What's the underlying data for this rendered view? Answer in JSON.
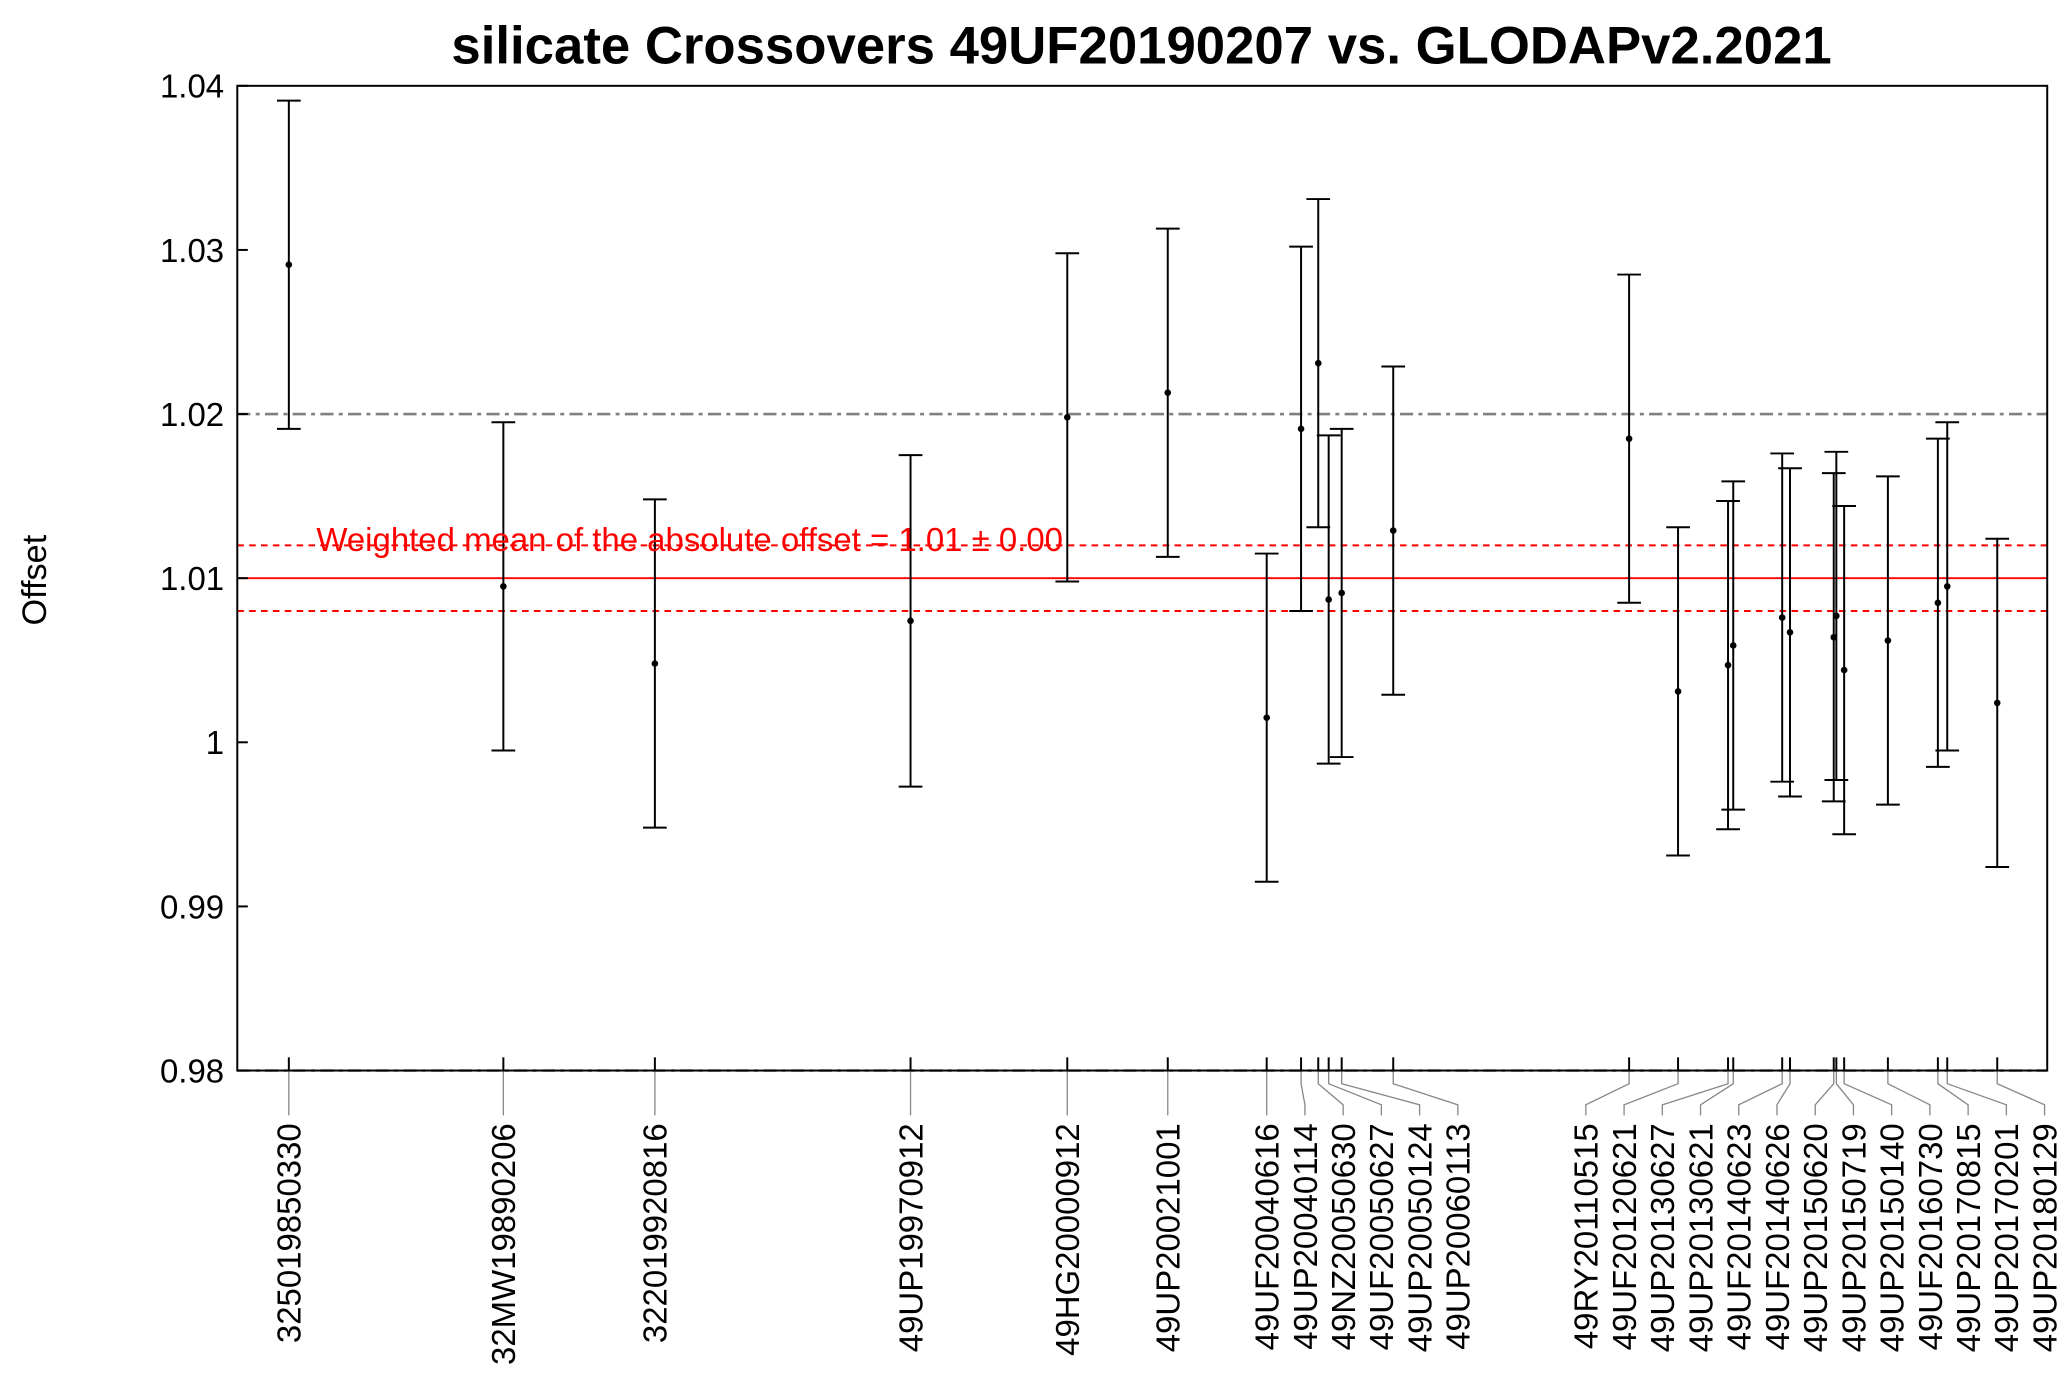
{
  "chart_data": {
    "type": "scatter",
    "title": "silicate Crossovers 49UF20190207 vs. GLODAPv2.2021",
    "xlabel": "",
    "ylabel": "Offset",
    "ylim": [
      0.98,
      1.04
    ],
    "yticks": [
      "0.98",
      "0.99",
      "1",
      "1.01",
      "1.02",
      "1.03",
      "1.04"
    ],
    "xlim": [
      1984.26,
      2019.02
    ],
    "annotation": "Weighted mean of the absolute offset = 1.01 ± 0.00",
    "weighted_mean": 1.01,
    "mean_band": [
      1.008,
      1.012
    ],
    "reference_line": 1.02,
    "colors": {
      "mean": "#ff0000",
      "points": "#000000",
      "reference": "#808080"
    },
    "points": [
      {
        "label": "325019850330",
        "x": 1985.25,
        "y": 1.0291,
        "err": 0.01
      },
      {
        "label": "32MW19890206",
        "x": 1989.37,
        "y": 1.0095,
        "err": 0.01
      },
      {
        "label": "322019920816",
        "x": 1992.28,
        "y": 1.0048,
        "err": 0.01
      },
      {
        "label": "49UP19970912",
        "x": 1997.19,
        "y": 1.0074,
        "err": 0.0101
      },
      {
        "label": "49HG20000912",
        "x": 2000.2,
        "y": 1.0198,
        "err": 0.01
      },
      {
        "label": "49UP20021001",
        "x": 2002.13,
        "y": 1.0213,
        "err": 0.01
      },
      {
        "label": "49UF20040616",
        "x": 2004.03,
        "y": 1.0015,
        "err": 0.01
      },
      {
        "label": "49UP20040114",
        "x": 2004.69,
        "y": 1.0191,
        "err": 0.0111
      },
      {
        "label": "49NZ20050630",
        "x": 2005.02,
        "y": 1.0231,
        "err": 0.01
      },
      {
        "label": "49UF20050627",
        "x": 2005.22,
        "y": 1.0087,
        "err": 0.01
      },
      {
        "label": "49UP20050124",
        "x": 2005.47,
        "y": 1.0091,
        "err": 0.01
      },
      {
        "label": "49UP20060113",
        "x": 2006.46,
        "y": 1.0129,
        "err": 0.01
      },
      {
        "label": "49RY20110515",
        "x": 2010.99,
        "y": 1.0185,
        "err": 0.01
      },
      {
        "label": "49UF20120621",
        "x": 2011.93,
        "y": 1.0031,
        "err": 0.01
      },
      {
        "label": "49UP20130627",
        "x": 2012.89,
        "y": 1.0047,
        "err": 0.01
      },
      {
        "label": "49UP20130621",
        "x": 2012.99,
        "y": 1.0059,
        "err": 0.01
      },
      {
        "label": "49UF20140623",
        "x": 2013.93,
        "y": 1.0076,
        "err": 0.01
      },
      {
        "label": "49UF20140626",
        "x": 2014.08,
        "y": 1.0067,
        "err": 0.01
      },
      {
        "label": "49UP20150620",
        "x": 2014.92,
        "y": 1.0064,
        "err": 0.01
      },
      {
        "label": "49UP20150719",
        "x": 2014.97,
        "y": 1.0077,
        "err": 0.01
      },
      {
        "label": "49UP20150140",
        "x": 2015.12,
        "y": 1.0044,
        "err": 0.01
      },
      {
        "label": "49UF20160730",
        "x": 2015.96,
        "y": 1.0062,
        "err": 0.01
      },
      {
        "label": "49UP20170815",
        "x": 2016.92,
        "y": 1.0085,
        "err": 0.01
      },
      {
        "label": "49UP20170201",
        "x": 2017.1,
        "y": 1.0095,
        "err": 0.01
      },
      {
        "label": "49UP20180129",
        "x": 2018.06,
        "y": 1.0024,
        "err": 0.01
      }
    ]
  }
}
